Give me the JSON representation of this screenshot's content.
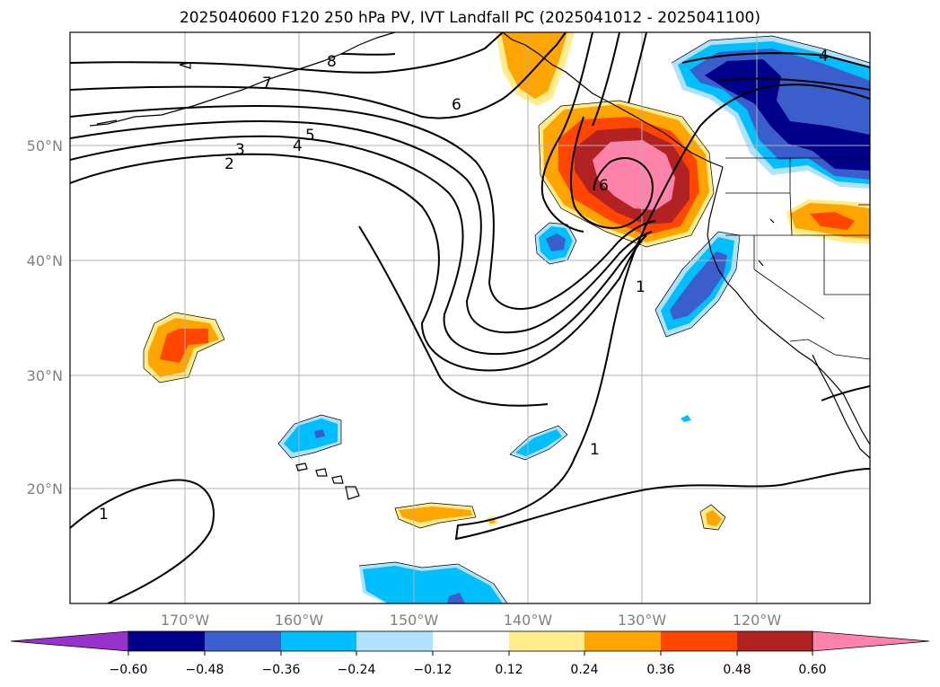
{
  "title": "2025040600 F120 250 hPa PV, IVT Landfall PC (2025041012 - 2025041100)",
  "lat_labels": [
    "50°N",
    "40°N",
    "30°N",
    "20°N"
  ],
  "lon_labels": [
    "170°W",
    "160°W",
    "150°W",
    "140°W",
    "130°W",
    "120°W"
  ],
  "colorbar": {
    "tick_labels": [
      "−0.60",
      "−0.48",
      "−0.36",
      "−0.24",
      "−0.12",
      "0.12",
      "0.24",
      "0.36",
      "0.48",
      "0.60"
    ],
    "colors": [
      "#9932cc",
      "#00008b",
      "#3a5fcd",
      "#00bfff",
      "#b0e2ff",
      "#ffffff",
      "#ffec8b",
      "#ffa500",
      "#ff4500",
      "#b22222",
      "#ff82ab"
    ]
  },
  "pv_contour_labels": [
    "1",
    "1",
    "1",
    "2",
    "3",
    "4",
    "5",
    "6",
    "6",
    "7",
    "4",
    "8"
  ],
  "chart_data": {
    "type": "map",
    "fields": [
      "250 hPa PV contours (PVU)",
      "IVT landfall PC shading"
    ],
    "lat_range": [
      10,
      60
    ],
    "lon_range": [
      -180,
      -110
    ],
    "shading_levels": [
      -0.6,
      -0.48,
      -0.36,
      -0.24,
      -0.12,
      0.12,
      0.24,
      0.36,
      0.48,
      0.6
    ],
    "pv_contour_levels": [
      1,
      2,
      3,
      4,
      5,
      6,
      7,
      8
    ]
  }
}
